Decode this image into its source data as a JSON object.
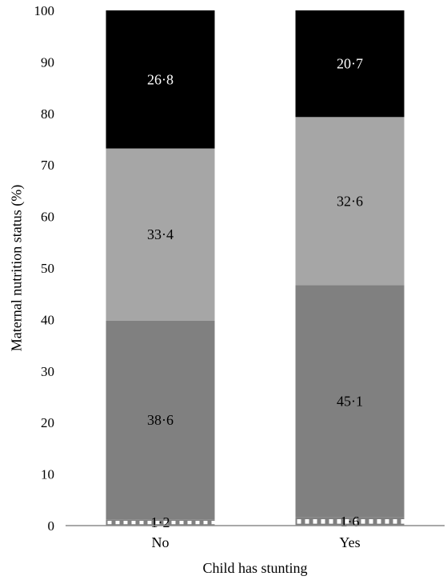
{
  "chart_data": {
    "type": "bar",
    "stacked": true,
    "title": "",
    "xlabel": "Child has stunting",
    "ylabel": "Maternal nutrition status (%)",
    "ylim": [
      0,
      100
    ],
    "yticks": [
      "0",
      "10",
      "20",
      "30",
      "40",
      "50",
      "60",
      "70",
      "80",
      "90",
      "100"
    ],
    "grid": false,
    "legend": "none",
    "categories": [
      "No",
      "Yes"
    ],
    "series": [
      {
        "values": [
          1.2,
          1.6
        ],
        "labels": [
          "1·2",
          "1·6"
        ],
        "color": "#808080",
        "pattern": "dashed-white",
        "label_color": "#000000"
      },
      {
        "values": [
          38.6,
          45.1
        ],
        "labels": [
          "38·6",
          "45·1"
        ],
        "color": "#808080",
        "label_color": "#000000"
      },
      {
        "values": [
          33.4,
          32.6
        ],
        "labels": [
          "33·4",
          "32·6"
        ],
        "color": "#a6a6a6",
        "label_color": "#000000"
      },
      {
        "values": [
          26.8,
          20.7
        ],
        "labels": [
          "26·8",
          "20·7"
        ],
        "color": "#000000",
        "label_color": "#ffffff"
      }
    ]
  }
}
